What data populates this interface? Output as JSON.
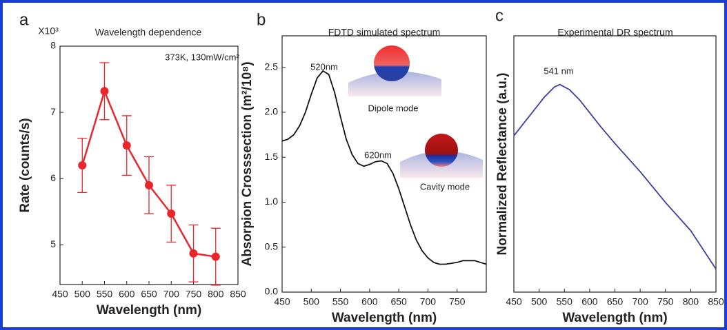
{
  "chart_data": [
    {
      "type": "line",
      "label": "a",
      "title": "Wavelength dependence",
      "y_multiplier": "X10³",
      "annotations": [
        "373K, 130mW/cm²"
      ],
      "x_label": "Wavelength (nm)",
      "y_label": "Rate (counts/s)",
      "x": [
        500,
        550,
        600,
        650,
        700,
        750,
        800
      ],
      "values": [
        6.2,
        7.32,
        6.5,
        5.9,
        5.47,
        4.87,
        4.82
      ],
      "errors": [
        0.41,
        0.43,
        0.45,
        0.43,
        0.43,
        0.43,
        0.43
      ],
      "color": "#e8262b",
      "markers": true,
      "xlim": [
        450,
        850
      ],
      "xticks": [
        450,
        500,
        550,
        600,
        650,
        700,
        750,
        800,
        850
      ],
      "ylim": [
        4.4,
        8
      ],
      "yticks": [
        5,
        6,
        7,
        8
      ]
    },
    {
      "type": "line",
      "label": "b",
      "title": "FDTD simulated spectrum",
      "annotations": [
        "520nm",
        "620nm",
        "Dipole mode",
        "Cavity mode"
      ],
      "x_label": "Wavelength (nm)",
      "y_label": "Absorpion Crosssection (m²/10⁸)",
      "x": [
        450,
        460,
        470,
        480,
        490,
        500,
        510,
        520,
        530,
        540,
        550,
        560,
        570,
        580,
        590,
        600,
        610,
        620,
        630,
        640,
        650,
        660,
        670,
        680,
        690,
        700,
        710,
        720,
        730,
        740,
        750,
        760,
        770,
        780,
        790,
        800
      ],
      "values": [
        1.68,
        1.7,
        1.75,
        1.85,
        2.0,
        2.2,
        2.38,
        2.46,
        2.42,
        2.22,
        1.95,
        1.7,
        1.53,
        1.43,
        1.4,
        1.42,
        1.45,
        1.46,
        1.43,
        1.32,
        1.15,
        0.95,
        0.75,
        0.58,
        0.46,
        0.38,
        0.33,
        0.31,
        0.31,
        0.32,
        0.33,
        0.35,
        0.35,
        0.35,
        0.33,
        0.31
      ],
      "color": "#111111",
      "markers": false,
      "xlim": [
        450,
        800
      ],
      "xticks": [
        450,
        500,
        550,
        600,
        650,
        700,
        750
      ],
      "ylim": [
        0,
        2.85
      ],
      "yticks": [
        {
          "value": 0,
          "label": "0.0"
        },
        0.5,
        {
          "value": 1,
          "label": "1.0"
        },
        1.5,
        {
          "value": 2,
          "label": "2.0"
        },
        2.5
      ]
    },
    {
      "type": "line",
      "label": "c",
      "title": "Experimental DR spectrum",
      "annotations": [
        "541 nm"
      ],
      "x_label": "Wavelength (nm)",
      "y_label": "Normalized Reflectance (a.u.)",
      "x": [
        450,
        470,
        490,
        510,
        530,
        541,
        560,
        580,
        600,
        620,
        650,
        700,
        750,
        800,
        850
      ],
      "values": [
        0.61,
        0.66,
        0.71,
        0.76,
        0.8,
        0.81,
        0.79,
        0.75,
        0.7,
        0.65,
        0.58,
        0.47,
        0.35,
        0.24,
        0.09
      ],
      "color": "#3a3f9e",
      "markers": false,
      "xlim": [
        450,
        850
      ],
      "xticks": [
        450,
        500,
        550,
        600,
        650,
        700,
        750,
        800,
        850
      ],
      "ylim": [
        0,
        1
      ],
      "yticks": []
    }
  ]
}
